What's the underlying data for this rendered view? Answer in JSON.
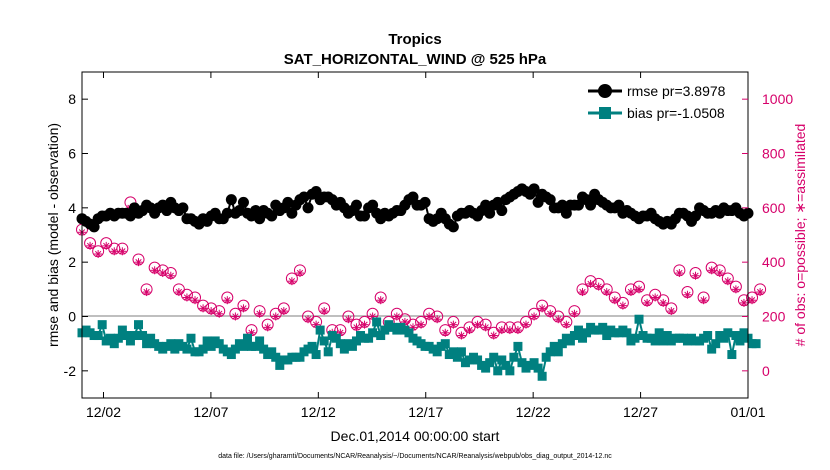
{
  "chart_data": {
    "type": "line",
    "title": "Tropics",
    "subtitle": "SAT_HORIZONTAL_WIND @ 525 hPa",
    "xlabel": "Dec.01,2014 00:00:00 start",
    "ylabel": "rmse and bias (model - observation)",
    "y2label": "# of obs: o=possible; ∗=assimilated",
    "footnote": "data file: /Users/gharamti/Documents/NCAR/Reanalysis/~/Documents/NCAR/Reanalysis/webpub/obs_diag_output_2014-12.nc",
    "xlim": [
      0,
      31
    ],
    "ylim": [
      -3,
      9
    ],
    "y2lim": [
      -100,
      1100
    ],
    "x_ticks": [
      1,
      6,
      11,
      16,
      21,
      26,
      31
    ],
    "x_tick_labels": [
      "12/02",
      "12/07",
      "12/12",
      "12/17",
      "12/22",
      "12/27",
      "01/01"
    ],
    "y_ticks": [
      -2,
      0,
      2,
      4,
      6,
      8
    ],
    "y_tick_labels": [
      "-2",
      "0",
      "2",
      "4",
      "6",
      "8"
    ],
    "y2_ticks": [
      0,
      200,
      400,
      600,
      800,
      1000
    ],
    "y2_tick_labels": [
      "0",
      "200",
      "400",
      "600",
      "800",
      "1000"
    ],
    "legend_loc": "top-right",
    "colors": {
      "rmse": "#000000",
      "bias": "#008080",
      "obs": "#d6006a",
      "zero_line": "#aaaaaa"
    },
    "series": [
      {
        "name": "rmse pr=3.8978",
        "key": "rmse",
        "values": [
          3.6,
          3.5,
          3.4,
          3.3,
          3.6,
          3.7,
          3.7,
          3.8,
          3.7,
          3.8,
          3.8,
          3.8,
          3.7,
          4.0,
          3.8,
          3.9,
          4.1,
          4.0,
          3.8,
          4.0,
          4.1,
          3.9,
          4.2,
          4.0,
          3.9,
          4.0,
          3.6,
          3.6,
          3.5,
          3.4,
          3.6,
          3.5,
          3.7,
          3.8,
          3.6,
          3.6,
          3.8,
          4.3,
          3.8,
          3.9,
          4.2,
          3.8,
          3.7,
          3.9,
          3.6,
          3.9,
          3.8,
          3.7,
          4.1,
          3.9,
          4.0,
          4.2,
          3.8,
          4.1,
          4.3,
          4.4,
          4.0,
          4.5,
          4.6,
          4.3,
          4.4,
          4.4,
          4.3,
          4.1,
          4.2,
          4.0,
          3.8,
          3.9,
          4.1,
          3.7,
          3.7,
          4.0,
          4.1,
          3.8,
          3.6,
          3.8,
          3.7,
          3.8,
          3.9,
          3.9,
          4.1,
          4.3,
          4.4,
          4.1,
          4.1,
          4.2,
          3.6,
          3.5,
          3.6,
          3.8,
          3.6,
          3.4,
          3.3,
          3.7,
          3.8,
          3.8,
          3.9,
          3.8,
          3.7,
          3.9,
          4.1,
          3.8,
          4.1,
          4.2,
          3.9,
          4.3,
          4.4,
          4.5,
          4.6,
          4.7,
          4.6,
          4.5,
          4.7,
          4.2,
          4.5,
          4.4,
          4.3,
          4.0,
          4.0,
          4.1,
          3.8,
          4.1,
          4.1,
          4.1,
          4.4,
          4.3,
          4.1,
          4.5,
          4.3,
          4.2,
          4.1,
          4.0,
          4.0,
          4.1,
          3.8,
          3.9,
          3.8,
          3.7,
          3.6,
          3.7,
          3.7,
          3.8,
          3.6,
          3.5,
          3.4,
          3.5,
          3.4,
          3.6,
          3.8,
          3.8,
          3.7,
          3.5,
          3.7,
          4.0,
          3.9,
          3.8,
          3.8,
          3.9,
          3.8,
          4.0,
          3.9,
          3.9,
          4.0,
          3.8,
          3.7,
          3.8
        ]
      },
      {
        "name": "bias pr=-1.0508",
        "key": "bias",
        "values": [
          -0.6,
          -0.5,
          -0.6,
          -0.7,
          -0.7,
          -0.3,
          -0.9,
          -0.8,
          -1.0,
          -0.8,
          -0.5,
          -0.7,
          -0.9,
          -0.7,
          -0.3,
          -0.7,
          -1.0,
          -0.8,
          -1.0,
          -1.1,
          -1.2,
          -1.1,
          -1.0,
          -1.2,
          -1.0,
          -1.1,
          -1.2,
          -0.8,
          -1.3,
          -1.3,
          -1.2,
          -0.9,
          -1.1,
          -0.9,
          -1.0,
          -1.2,
          -1.3,
          -1.4,
          -1.2,
          -1.0,
          -1.1,
          -0.8,
          -1.1,
          -1.1,
          -0.9,
          -1.2,
          -1.4,
          -1.3,
          -1.5,
          -1.8,
          -1.6,
          -1.6,
          -1.5,
          -1.5,
          -1.5,
          -1.3,
          -1.2,
          -1.1,
          -1.4,
          -0.5,
          -0.9,
          -1.3,
          -0.7,
          -0.8,
          -1.0,
          -1.2,
          -1.0,
          -1.1,
          -0.9,
          -0.7,
          -0.8,
          -0.8,
          -0.6,
          -0.2,
          -0.7,
          -0.5,
          -0.3,
          -0.4,
          -0.5,
          -0.4,
          -0.5,
          -0.6,
          -0.8,
          -0.9,
          -1.0,
          -1.1,
          -1.1,
          -1.2,
          -1.3,
          -1.1,
          -1.0,
          -1.4,
          -1.3,
          -1.5,
          -1.3,
          -1.7,
          -1.6,
          -1.5,
          -1.6,
          -1.8,
          -1.9,
          -1.7,
          -1.5,
          -2.0,
          -1.6,
          -1.8,
          -2.0,
          -1.5,
          -1.1,
          -1.7,
          -1.9,
          -1.8,
          -1.7,
          -1.9,
          -2.2,
          -1.5,
          -1.3,
          -1.1,
          -1.3,
          -1.0,
          -0.8,
          -0.9,
          -0.7,
          -0.5,
          -0.8,
          -0.6,
          -0.4,
          -0.5,
          -0.5,
          -0.4,
          -0.7,
          -0.5,
          -0.6,
          -0.6,
          -0.5,
          -0.6,
          -0.9,
          -0.8,
          -0.1,
          -0.7,
          -0.8,
          -0.8,
          -0.9,
          -0.6,
          -0.9,
          -0.7,
          -0.9,
          -0.8,
          -0.8,
          -0.8,
          -0.9,
          -0.8,
          -0.9,
          -0.9,
          -0.8,
          -0.7,
          -1.2,
          -1.0,
          -0.7,
          -0.8,
          -0.6,
          -1.4,
          -0.7,
          -0.9,
          -0.6,
          -0.8,
          -1.0,
          -1.0
        ]
      },
      {
        "name": "# obs possible",
        "key": "possible",
        "axis": "right",
        "values": [
          520,
          530,
          470,
          540,
          440,
          430,
          470,
          460,
          450,
          430,
          450,
          470,
          620,
          450,
          410,
          320,
          300,
          310,
          380,
          360,
          370,
          340,
          360,
          330,
          300,
          320,
          280,
          310,
          270,
          260,
          240,
          230,
          230,
          250,
          220,
          220,
          270,
          260,
          210,
          190,
          240,
          240,
          150,
          170,
          220,
          170,
          170,
          180,
          210,
          200,
          230,
          180,
          340,
          360,
          370,
          350,
          200,
          180,
          180,
          240,
          230,
          160,
          150,
          170,
          150,
          160,
          200,
          210,
          170,
          160,
          180,
          190,
          210,
          200,
          270,
          220,
          180,
          170,
          210,
          190,
          190,
          180,
          170,
          170,
          180,
          180,
          210,
          170,
          200,
          200,
          150,
          170,
          180,
          130,
          140,
          150,
          160,
          180,
          180,
          160,
          170,
          160,
          140,
          150,
          160,
          140,
          160,
          130,
          160,
          150,
          180,
          190,
          210,
          250,
          240,
          230,
          220,
          210,
          200,
          190,
          180,
          200,
          220,
          260,
          300,
          320,
          330,
          310,
          320,
          290,
          300,
          280,
          270,
          260,
          250,
          240,
          300,
          360,
          310,
          280,
          260,
          340,
          280,
          330,
          260,
          250,
          230,
          310,
          370,
          380,
          290,
          330,
          360,
          320,
          270,
          300,
          380,
          390,
          370,
          350,
          340,
          350,
          310,
          330,
          260,
          280,
          270,
          290,
          300,
          400
        ]
      },
      {
        "name": "# obs assimilated",
        "key": "assimilated",
        "axis": "right",
        "values": [
          510,
          520,
          460,
          530,
          430,
          420,
          460,
          450,
          440,
          420,
          440,
          460,
          600,
          440,
          400,
          310,
          290,
          300,
          370,
          350,
          360,
          330,
          350,
          320,
          290,
          310,
          270,
          300,
          260,
          250,
          230,
          220,
          220,
          240,
          210,
          210,
          260,
          250,
          200,
          180,
          230,
          230,
          140,
          160,
          210,
          160,
          160,
          170,
          200,
          190,
          220,
          170,
          330,
          350,
          360,
          340,
          190,
          170,
          170,
          230,
          220,
          150,
          140,
          160,
          140,
          150,
          190,
          200,
          160,
          150,
          170,
          180,
          200,
          190,
          260,
          210,
          170,
          160,
          200,
          180,
          180,
          170,
          160,
          160,
          170,
          170,
          200,
          160,
          190,
          190,
          140,
          160,
          170,
          120,
          130,
          140,
          150,
          170,
          170,
          150,
          160,
          150,
          130,
          140,
          150,
          130,
          150,
          120,
          150,
          140,
          170,
          180,
          200,
          240,
          230,
          220,
          210,
          200,
          190,
          180,
          170,
          190,
          210,
          250,
          290,
          310,
          320,
          300,
          310,
          280,
          290,
          270,
          260,
          250,
          240,
          230,
          290,
          350,
          300,
          270,
          250,
          330,
          270,
          320,
          250,
          240,
          220,
          300,
          360,
          370,
          280,
          320,
          350,
          310,
          260,
          290,
          370,
          380,
          360,
          340,
          330,
          340,
          300,
          320,
          250,
          270,
          260,
          280,
          290,
          390
        ]
      }
    ]
  }
}
